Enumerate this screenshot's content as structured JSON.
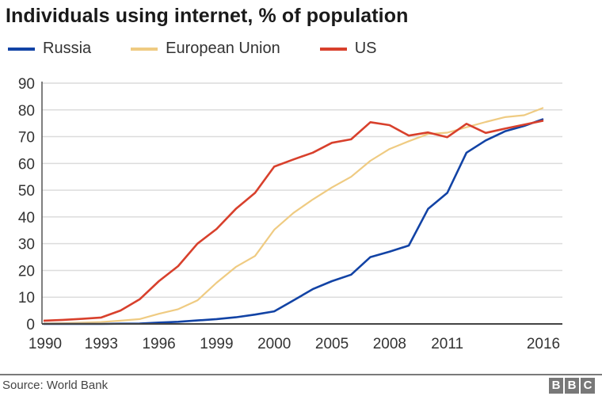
{
  "chart_data": {
    "type": "line",
    "title": "Individuals using internet, % of population",
    "xlabel": "",
    "ylabel": "",
    "x": [
      1990,
      1991,
      1992,
      1993,
      1994,
      1995,
      1996,
      1997,
      1998,
      1999,
      2000,
      2001,
      2002,
      2003,
      2004,
      2005,
      2006,
      2007,
      2008,
      2009,
      2010,
      2011,
      2012,
      2013,
      2014,
      2015,
      2016
    ],
    "x_tick_labels": [
      "1990",
      "1993",
      "1996",
      "1999",
      "2000",
      "2005",
      "2008",
      "2011",
      "2016"
    ],
    "ylim": [
      0,
      90
    ],
    "y_ticks": [
      0,
      10,
      20,
      30,
      40,
      50,
      60,
      70,
      80,
      90
    ],
    "grid": "horizontal",
    "legend_position": "top-left",
    "series": [
      {
        "name": "Russia",
        "color": "#1243a5",
        "values": [
          0,
          0,
          0,
          0,
          0.1,
          0.15,
          0.5,
          0.8,
          1.3,
          1.8,
          2.5,
          3.5,
          4.7,
          8.8,
          13,
          16,
          18.4,
          25,
          27,
          29.3,
          43,
          49,
          64,
          68.6,
          72,
          74,
          76.6
        ]
      },
      {
        "name": "European Union",
        "color": "#efcb82",
        "values": [
          0.2,
          0.3,
          0.5,
          0.7,
          1.2,
          1.8,
          3.8,
          5.5,
          8.8,
          15.4,
          21.3,
          25.4,
          35.2,
          41.5,
          46.5,
          51,
          55,
          61,
          65.4,
          68.3,
          71,
          71.5,
          73.5,
          75.5,
          77.3,
          78,
          80.8
        ]
      },
      {
        "name": "US",
        "color": "#d8402c",
        "values": [
          1.2,
          1.5,
          1.9,
          2.4,
          5,
          9.2,
          16,
          21.6,
          30,
          35.5,
          43,
          49,
          58.8,
          61.5,
          64,
          67.7,
          69,
          75.4,
          74.3,
          70.4,
          71.6,
          69.8,
          74.8,
          71.4,
          73,
          74.5,
          76
        ]
      }
    ]
  },
  "footer": {
    "source": "Source: World Bank",
    "logo_text": [
      "B",
      "B",
      "C"
    ]
  }
}
